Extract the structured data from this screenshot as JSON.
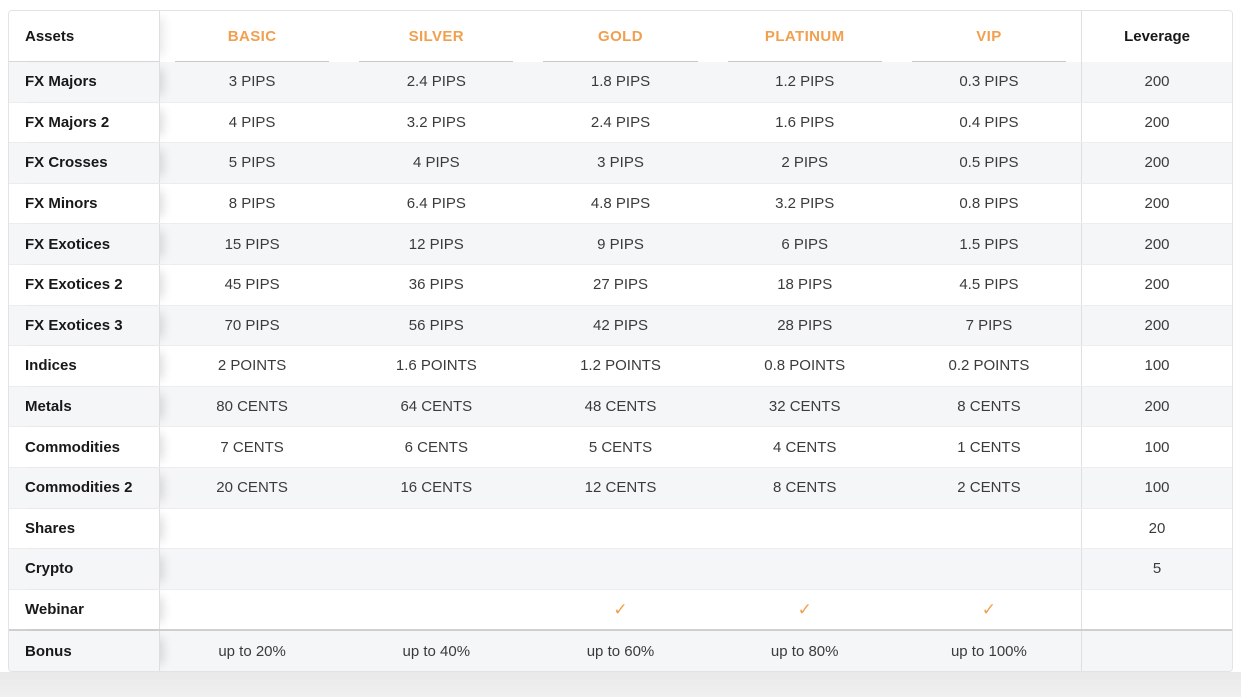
{
  "page": {
    "accent_color": "#f0a04e"
  },
  "table": {
    "header": {
      "assets": "Assets",
      "plans": [
        "BASIC",
        "SILVER",
        "GOLD",
        "PLATINUM",
        "VIP"
      ],
      "leverage": "Leverage"
    },
    "rows": [
      {
        "asset": "FX Majors",
        "values": [
          "3 PIPS",
          "2.4 PIPS",
          "1.8 PIPS",
          "1.2 PIPS",
          "0.3 PIPS"
        ],
        "leverage": "200"
      },
      {
        "asset": "FX Majors 2",
        "values": [
          "4 PIPS",
          "3.2 PIPS",
          "2.4 PIPS",
          "1.6 PIPS",
          "0.4 PIPS"
        ],
        "leverage": "200"
      },
      {
        "asset": "FX Crosses",
        "values": [
          "5 PIPS",
          "4 PIPS",
          "3 PIPS",
          "2 PIPS",
          "0.5 PIPS"
        ],
        "leverage": "200"
      },
      {
        "asset": "FX Minors",
        "values": [
          "8 PIPS",
          "6.4 PIPS",
          "4.8 PIPS",
          "3.2 PIPS",
          "0.8 PIPS"
        ],
        "leverage": "200"
      },
      {
        "asset": "FX Exotices",
        "values": [
          "15 PIPS",
          "12 PIPS",
          "9 PIPS",
          "6 PIPS",
          "1.5 PIPS"
        ],
        "leverage": "200"
      },
      {
        "asset": "FX Exotices 2",
        "values": [
          "45 PIPS",
          "36 PIPS",
          "27 PIPS",
          "18 PIPS",
          "4.5 PIPS"
        ],
        "leverage": "200"
      },
      {
        "asset": "FX Exotices 3",
        "values": [
          "70 PIPS",
          "56 PIPS",
          "42 PIPS",
          "28 PIPS",
          "7 PIPS"
        ],
        "leverage": "200"
      },
      {
        "asset": "Indices",
        "values": [
          "2 POINTS",
          "1.6 POINTS",
          "1.2 POINTS",
          "0.8 POINTS",
          "0.2 POINTS"
        ],
        "leverage": "100"
      },
      {
        "asset": "Metals",
        "values": [
          "80 CENTS",
          "64 CENTS",
          "48 CENTS",
          "32 CENTS",
          "8 CENTS"
        ],
        "leverage": "200"
      },
      {
        "asset": "Commodities",
        "values": [
          "7 CENTS",
          "6 CENTS",
          "5 CENTS",
          "4 CENTS",
          "1 CENTS"
        ],
        "leverage": "100"
      },
      {
        "asset": "Commodities 2",
        "values": [
          "20 CENTS",
          "16 CENTS",
          "12 CENTS",
          "8 CENTS",
          "2 CENTS"
        ],
        "leverage": "100"
      },
      {
        "asset": "Shares",
        "values": [
          "",
          "",
          "",
          "",
          ""
        ],
        "leverage": "20"
      },
      {
        "asset": "Crypto",
        "values": [
          "",
          "",
          "",
          "",
          ""
        ],
        "leverage": "5"
      },
      {
        "asset": "Webinar",
        "values": [
          "",
          "",
          "✓",
          "✓",
          "✓"
        ],
        "leverage": ""
      },
      {
        "asset": "Bonus",
        "values": [
          "up to 20%",
          "up to 40%",
          "up to 60%",
          "up to 80%",
          "up to 100%"
        ],
        "leverage": ""
      }
    ]
  }
}
